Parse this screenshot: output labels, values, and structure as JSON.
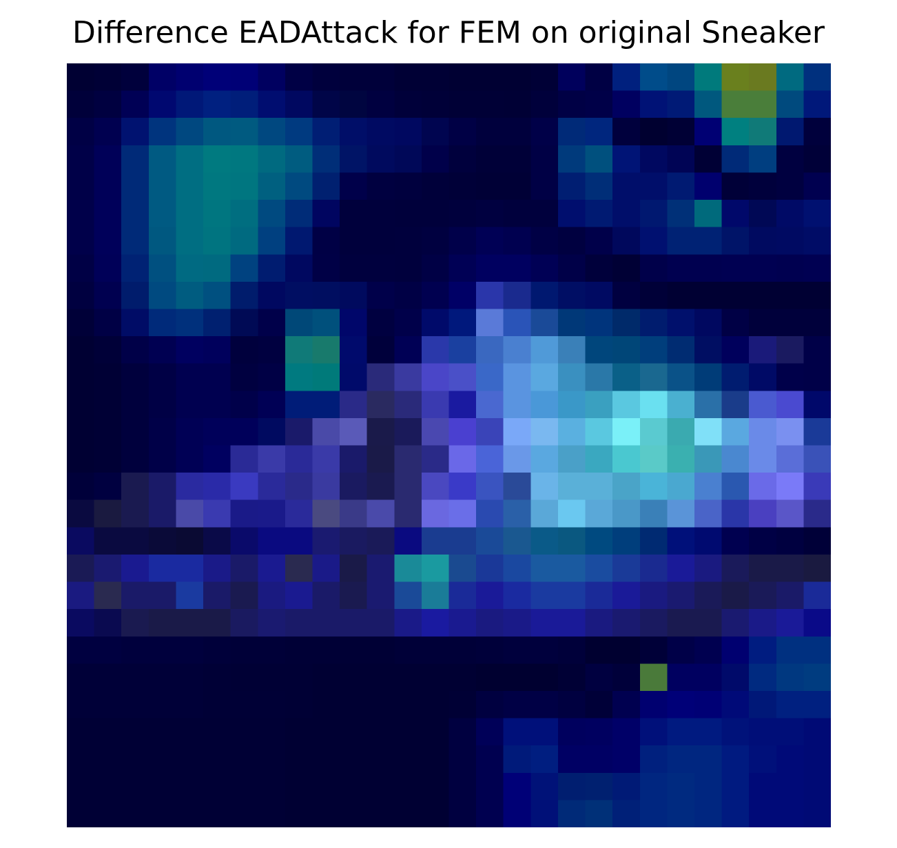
{
  "chart_data": {
    "type": "heatmap",
    "title": "Difference EADAttack for FEM on original Sneaker",
    "xlabel": "",
    "ylabel": "",
    "grid": false,
    "rows": 28,
    "cols": 28,
    "cells": [
      [
        "#000033",
        "#000036",
        "#00003c",
        "#000066",
        "#000070",
        "#000078",
        "#000076",
        "#000060",
        "#000045",
        "#00003d",
        "#00003a",
        "#00003a",
        "#000035",
        "#000035",
        "#000033",
        "#000033",
        "#000033",
        "#000036",
        "#00005c",
        "#000044",
        "#00207e",
        "#004c8a",
        "#004680",
        "#007a7c",
        "#6a801e",
        "#6a7a20",
        "#006a80",
        "#00307e"
      ],
      [
        "#00003a",
        "#000040",
        "#000055",
        "#000870",
        "#001878",
        "#002080",
        "#001e7a",
        "#000d70",
        "#000860",
        "#000548",
        "#000540",
        "#000040",
        "#00003a",
        "#000038",
        "#000036",
        "#000036",
        "#000035",
        "#00003b",
        "#000045",
        "#000048",
        "#000060",
        "#001276",
        "#001a76",
        "#00587e",
        "#4a7e3a",
        "#4a7e3a",
        "#004a7e",
        "#00187a"
      ],
      [
        "#000045",
        "#000050",
        "#001270",
        "#00347e",
        "#004880",
        "#005880",
        "#005a80",
        "#004880",
        "#003a80",
        "#001e74",
        "#000e68",
        "#000a62",
        "#000860",
        "#000550",
        "#000045",
        "#00003d",
        "#00003d",
        "#000048",
        "#002a78",
        "#00267e",
        "#00003d",
        "#000030",
        "#000035",
        "#000073",
        "#008080",
        "#107a78",
        "#001870",
        "#00003c"
      ],
      [
        "#000048",
        "#000058",
        "#002a78",
        "#005a82",
        "#006e82",
        "#007a80",
        "#007880",
        "#006a80",
        "#005c80",
        "#002e78",
        "#001466",
        "#000a5e",
        "#000858",
        "#00004a",
        "#00003d",
        "#000038",
        "#000038",
        "#000045",
        "#003a7c",
        "#00507e",
        "#001476",
        "#000860",
        "#000455",
        "#000035",
        "#002a78",
        "#003e80",
        "#000040",
        "#000038"
      ],
      [
        "#000048",
        "#000058",
        "#002a78",
        "#005a82",
        "#006e82",
        "#007880",
        "#007680",
        "#006080",
        "#004a80",
        "#002070",
        "#00004a",
        "#000040",
        "#00003e",
        "#00003a",
        "#000038",
        "#000036",
        "#000036",
        "#000045",
        "#001e72",
        "#002e78",
        "#000e6a",
        "#000e6a",
        "#001a72",
        "#00006e",
        "#000038",
        "#00003c",
        "#000040",
        "#000050"
      ],
      [
        "#00004a",
        "#00005a",
        "#002a78",
        "#005a82",
        "#006e82",
        "#007680",
        "#006e80",
        "#004a80",
        "#002c78",
        "#000560",
        "#00003c",
        "#00003c",
        "#00003b",
        "#00003b",
        "#00003d",
        "#000040",
        "#00003d",
        "#00003d",
        "#000e6e",
        "#001a72",
        "#000e6a",
        "#001870",
        "#003078",
        "#006a7c",
        "#00086a",
        "#000855",
        "#000a66",
        "#001070"
      ],
      [
        "#00004a",
        "#00005a",
        "#002a78",
        "#005880",
        "#006e82",
        "#007480",
        "#006a80",
        "#004080",
        "#001870",
        "#000045",
        "#00003c",
        "#00003c",
        "#00003d",
        "#000040",
        "#00004a",
        "#000055",
        "#000050",
        "#000045",
        "#000040",
        "#00004a",
        "#00085c",
        "#001070",
        "#002274",
        "#002274",
        "#001468",
        "#000a60",
        "#000a62",
        "#000c66"
      ],
      [
        "#000045",
        "#000058",
        "#002274",
        "#005080",
        "#006a82",
        "#006a80",
        "#004280",
        "#001c70",
        "#000860",
        "#000046",
        "#00003e",
        "#00003e",
        "#00003d",
        "#000045",
        "#000055",
        "#000060",
        "#000060",
        "#000055",
        "#000048",
        "#00003b",
        "#000035",
        "#00004a",
        "#000050",
        "#000050",
        "#000052",
        "#000052",
        "#000050",
        "#000052"
      ],
      [
        "#000040",
        "#000050",
        "#001c6c",
        "#004a80",
        "#005c80",
        "#005080",
        "#001c6c",
        "#000860",
        "#000e62",
        "#000e60",
        "#000a5e",
        "#00004a",
        "#000045",
        "#000050",
        "#000066",
        "#2a36aa",
        "#1a2a8e",
        "#001870",
        "#000e64",
        "#000a62",
        "#000040",
        "#000038",
        "#000033",
        "#000033",
        "#000033",
        "#000033",
        "#000033",
        "#000033"
      ],
      [
        "#000038",
        "#000045",
        "#000c66",
        "#002a7a",
        "#00307c",
        "#002070",
        "#000a55",
        "#00004a",
        "#004878",
        "#00507c",
        "#00066a",
        "#000040",
        "#00004a",
        "#000a6a",
        "#00187c",
        "#5a7ad8",
        "#2a54b8",
        "#1a4a98",
        "#003878",
        "#00347c",
        "#002a6a",
        "#001c6e",
        "#00106c",
        "#000860",
        "#000045",
        "#00003b",
        "#00003b",
        "#00003b"
      ],
      [
        "#000033",
        "#000038",
        "#000048",
        "#000052",
        "#000060",
        "#00005c",
        "#00003d",
        "#000040",
        "#107a78",
        "#187a6c",
        "#000a6c",
        "#00003b",
        "#000055",
        "#2a38aa",
        "#1a40a0",
        "#3a68c0",
        "#4a80d0",
        "#509ad8",
        "#3a80b8",
        "#00467c",
        "#004678",
        "#003e7c",
        "#002c72",
        "#000e62",
        "#00005c",
        "#1a1a7a",
        "#1a1a60",
        "#000048"
      ],
      [
        "#000033",
        "#000035",
        "#00003d",
        "#000045",
        "#000050",
        "#000050",
        "#000040",
        "#000045",
        "#007a80",
        "#007a7a",
        "#000a6a",
        "#2a2a7a",
        "#3a3aa0",
        "#4a46c8",
        "#4a50c8",
        "#3a68c8",
        "#5a94e0",
        "#5aa8e0",
        "#3a90c0",
        "#2a78a8",
        "#0a6088",
        "#1a6890",
        "#0a5288",
        "#003c78",
        "#001c70",
        "#000a66",
        "#00004a",
        "#000048"
      ],
      [
        "#000033",
        "#000035",
        "#00003d",
        "#000045",
        "#000050",
        "#000050",
        "#00004a",
        "#000055",
        "#001c78",
        "#001c78",
        "#2a2a88",
        "#2a2a60",
        "#2a2a7a",
        "#3a3ab0",
        "#1a1aa0",
        "#4a68d0",
        "#5a94e0",
        "#4a98d8",
        "#3a98c8",
        "#3aa0c0",
        "#5ac8e0",
        "#6ae0f0",
        "#4ab0d0",
        "#2a70a8",
        "#1a3c8a",
        "#4a5ad0",
        "#4a4ad0",
        "#00086a"
      ],
      [
        "#000033",
        "#000035",
        "#00003d",
        "#000048",
        "#000055",
        "#00005a",
        "#00005a",
        "#000a60",
        "#1a1a6a",
        "#4a4aa8",
        "#5a5ab8",
        "#1a1a4a",
        "#1a1a5a",
        "#4a48b0",
        "#4a40d0",
        "#3a44b8",
        "#7aa8f8",
        "#7ab8f0",
        "#5ab0e0",
        "#5ac8e0",
        "#7af0f8",
        "#5acad0",
        "#3aaab0",
        "#80e0f8",
        "#5aa8e0",
        "#6a8ae8",
        "#7a90f0",
        "#1a3a98"
      ],
      [
        "#000033",
        "#000035",
        "#00003d",
        "#000048",
        "#000055",
        "#000060",
        "#2a2a96",
        "#3a3aa8",
        "#2a2a98",
        "#3a3aa8",
        "#1a1a6a",
        "#1a1a48",
        "#2a2a70",
        "#2a2a88",
        "#6a68e8",
        "#4a64d8",
        "#6a98e8",
        "#5aa8e0",
        "#4aa0c8",
        "#3aa8c0",
        "#4ac8d0",
        "#5acac8",
        "#3ab0b0",
        "#3a98b8",
        "#4a88d0",
        "#6a8ae8",
        "#5a6ed8",
        "#3a52b8"
      ],
      [
        "#00003a",
        "#000040",
        "#1a1a50",
        "#1a1a68",
        "#2a2aa0",
        "#2a2aa8",
        "#3a3ac0",
        "#2a2a9a",
        "#2a2a8a",
        "#3a3aa0",
        "#1a1a60",
        "#1a1a50",
        "#2a2a70",
        "#4a48c0",
        "#3a3ac8",
        "#3a54c0",
        "#2a4a98",
        "#6ab4e8",
        "#5ab0d8",
        "#5ab0d8",
        "#4aa4c8",
        "#4ab4d8",
        "#4aa8d0",
        "#4a80d0",
        "#2a58b0",
        "#6a6ae8",
        "#7a7af8",
        "#3a3ab8"
      ],
      [
        "#0a0a40",
        "#1a1a40",
        "#1a1a50",
        "#1a1a68",
        "#4a4aa8",
        "#3a3ab0",
        "#1a1a88",
        "#1a1a8a",
        "#2a2a9a",
        "#4a4a80",
        "#3a3a88",
        "#4a4aaa",
        "#2a2a70",
        "#6a68e0",
        "#6a6ee8",
        "#2a4ab0",
        "#2a60a8",
        "#5aa8d8",
        "#6ac8f0",
        "#5aa8d8",
        "#4a98c8",
        "#3a80b8",
        "#5a94d8",
        "#4a64c8",
        "#2a36a8",
        "#4a40c0",
        "#5a56c8",
        "#2a2a8a"
      ],
      [
        "#0a0a60",
        "#0a0a40",
        "#0a0a40",
        "#0a0a38",
        "#0a0a33",
        "#0a0a48",
        "#0a0a6a",
        "#0a0a80",
        "#0a0a80",
        "#1a1a70",
        "#1a1a60",
        "#1a1a58",
        "#0a0a80",
        "#1a3c90",
        "#1a3c90",
        "#1a4a98",
        "#1a5890",
        "#0a5a88",
        "#0a5880",
        "#004a80",
        "#003e7c",
        "#002a72",
        "#00107a",
        "#000a70",
        "#000050",
        "#000045",
        "#000040",
        "#000038"
      ],
      [
        "#1a1a55",
        "#1a1a70",
        "#1a1a90",
        "#1a2aa0",
        "#1a2aa0",
        "#1a1a88",
        "#1a1a68",
        "#1a1a90",
        "#2a2a50",
        "#1a1a88",
        "#1a1a48",
        "#1a1a70",
        "#1a8a98",
        "#1a9aa0",
        "#1a4a90",
        "#1a3898",
        "#1a48a0",
        "#1a5aa0",
        "#1a5aa0",
        "#1a4ca0",
        "#1a3a98",
        "#1a2a90",
        "#1a1a98",
        "#1a1a80",
        "#1a1a5a",
        "#1a1a48",
        "#1a1a48",
        "#1a1a40"
      ],
      [
        "#1a1a80",
        "#2a2a50",
        "#1a1a68",
        "#1a1a68",
        "#1a3aa0",
        "#1a1a68",
        "#1a1a50",
        "#1a1a80",
        "#1a1a90",
        "#1a1a68",
        "#1a1a50",
        "#1a1a70",
        "#1a4a98",
        "#1a7c98",
        "#1a2a98",
        "#1a1a98",
        "#1a2aa0",
        "#1a3aa0",
        "#1a3aa0",
        "#1a2a98",
        "#1a1a98",
        "#1a1a80",
        "#1a1a70",
        "#1a1a58",
        "#1a1a48",
        "#1a1a58",
        "#1a1a68",
        "#1a2a98"
      ],
      [
        "#0a0a60",
        "#0a0a50",
        "#1a1a50",
        "#1a1a48",
        "#1a1a48",
        "#1a1a48",
        "#1a1a60",
        "#1a1a70",
        "#1a1a68",
        "#1a1a68",
        "#1a1a68",
        "#1a1a68",
        "#1a1a88",
        "#1a1aa0",
        "#1a1a90",
        "#1a1a80",
        "#1a1a88",
        "#1a1a98",
        "#1a1a98",
        "#1a1a80",
        "#1a1a70",
        "#1a1a60",
        "#1a1a50",
        "#1a1a50",
        "#1a1a70",
        "#1a1a88",
        "#1a1a98",
        "#0a0a88"
      ],
      [
        "#000040",
        "#000040",
        "#00003d",
        "#00003d",
        "#00003d",
        "#00003a",
        "#000038",
        "#000038",
        "#000036",
        "#000036",
        "#000035",
        "#000035",
        "#000038",
        "#000038",
        "#000038",
        "#00003a",
        "#00003d",
        "#00003d",
        "#00003a",
        "#000030",
        "#000030",
        "#000038",
        "#000048",
        "#000050",
        "#000070",
        "#001c80",
        "#003080",
        "#003080"
      ],
      [
        "#000038",
        "#000038",
        "#000038",
        "#000038",
        "#000038",
        "#000036",
        "#000035",
        "#000035",
        "#000035",
        "#000033",
        "#000033",
        "#000033",
        "#000033",
        "#000033",
        "#000033",
        "#000030",
        "#000030",
        "#000030",
        "#000035",
        "#000040",
        "#00003a",
        "#4a7a3a",
        "#000060",
        "#000060",
        "#000a6a",
        "#002a80",
        "#003880",
        "#003c80"
      ],
      [
        "#000038",
        "#000038",
        "#000038",
        "#000038",
        "#000038",
        "#000036",
        "#000036",
        "#000036",
        "#000035",
        "#000033",
        "#000033",
        "#000033",
        "#000033",
        "#000033",
        "#000035",
        "#000040",
        "#000045",
        "#000045",
        "#000040",
        "#000038",
        "#000050",
        "#000070",
        "#000078",
        "#000075",
        "#000a78",
        "#001878",
        "#002080",
        "#002080"
      ],
      [
        "#000035",
        "#000035",
        "#000035",
        "#000035",
        "#000035",
        "#000035",
        "#000035",
        "#000035",
        "#000033",
        "#000033",
        "#000033",
        "#000033",
        "#000033",
        "#000033",
        "#000040",
        "#000058",
        "#00107a",
        "#00107a",
        "#00005e",
        "#000060",
        "#000068",
        "#00107a",
        "#001a80",
        "#001a80",
        "#00127a",
        "#000e78",
        "#000e78",
        "#000a75"
      ],
      [
        "#000035",
        "#000035",
        "#000035",
        "#000035",
        "#000035",
        "#000035",
        "#000035",
        "#000035",
        "#000033",
        "#000033",
        "#000033",
        "#000033",
        "#000033",
        "#000033",
        "#000040",
        "#000050",
        "#001a7a",
        "#001e80",
        "#000064",
        "#000064",
        "#000068",
        "#00207e",
        "#002680",
        "#002680",
        "#001a80",
        "#00107a",
        "#000a78",
        "#000a75"
      ],
      [
        "#000035",
        "#000035",
        "#000035",
        "#000035",
        "#000035",
        "#000035",
        "#000035",
        "#000035",
        "#000033",
        "#000033",
        "#000033",
        "#000033",
        "#000033",
        "#000033",
        "#000040",
        "#000050",
        "#000078",
        "#001278",
        "#001e70",
        "#002070",
        "#001a76",
        "#002680",
        "#002a80",
        "#002680",
        "#001a80",
        "#000a78",
        "#000a78",
        "#000a75"
      ],
      [
        "#000035",
        "#000035",
        "#000035",
        "#000035",
        "#000035",
        "#000035",
        "#000035",
        "#000035",
        "#000033",
        "#000033",
        "#000033",
        "#000033",
        "#000033",
        "#000033",
        "#000040",
        "#000050",
        "#000075",
        "#001078",
        "#002a78",
        "#003078",
        "#002078",
        "#002680",
        "#002a80",
        "#002680",
        "#001a80",
        "#000a78",
        "#000a78",
        "#000a75"
      ]
    ]
  }
}
